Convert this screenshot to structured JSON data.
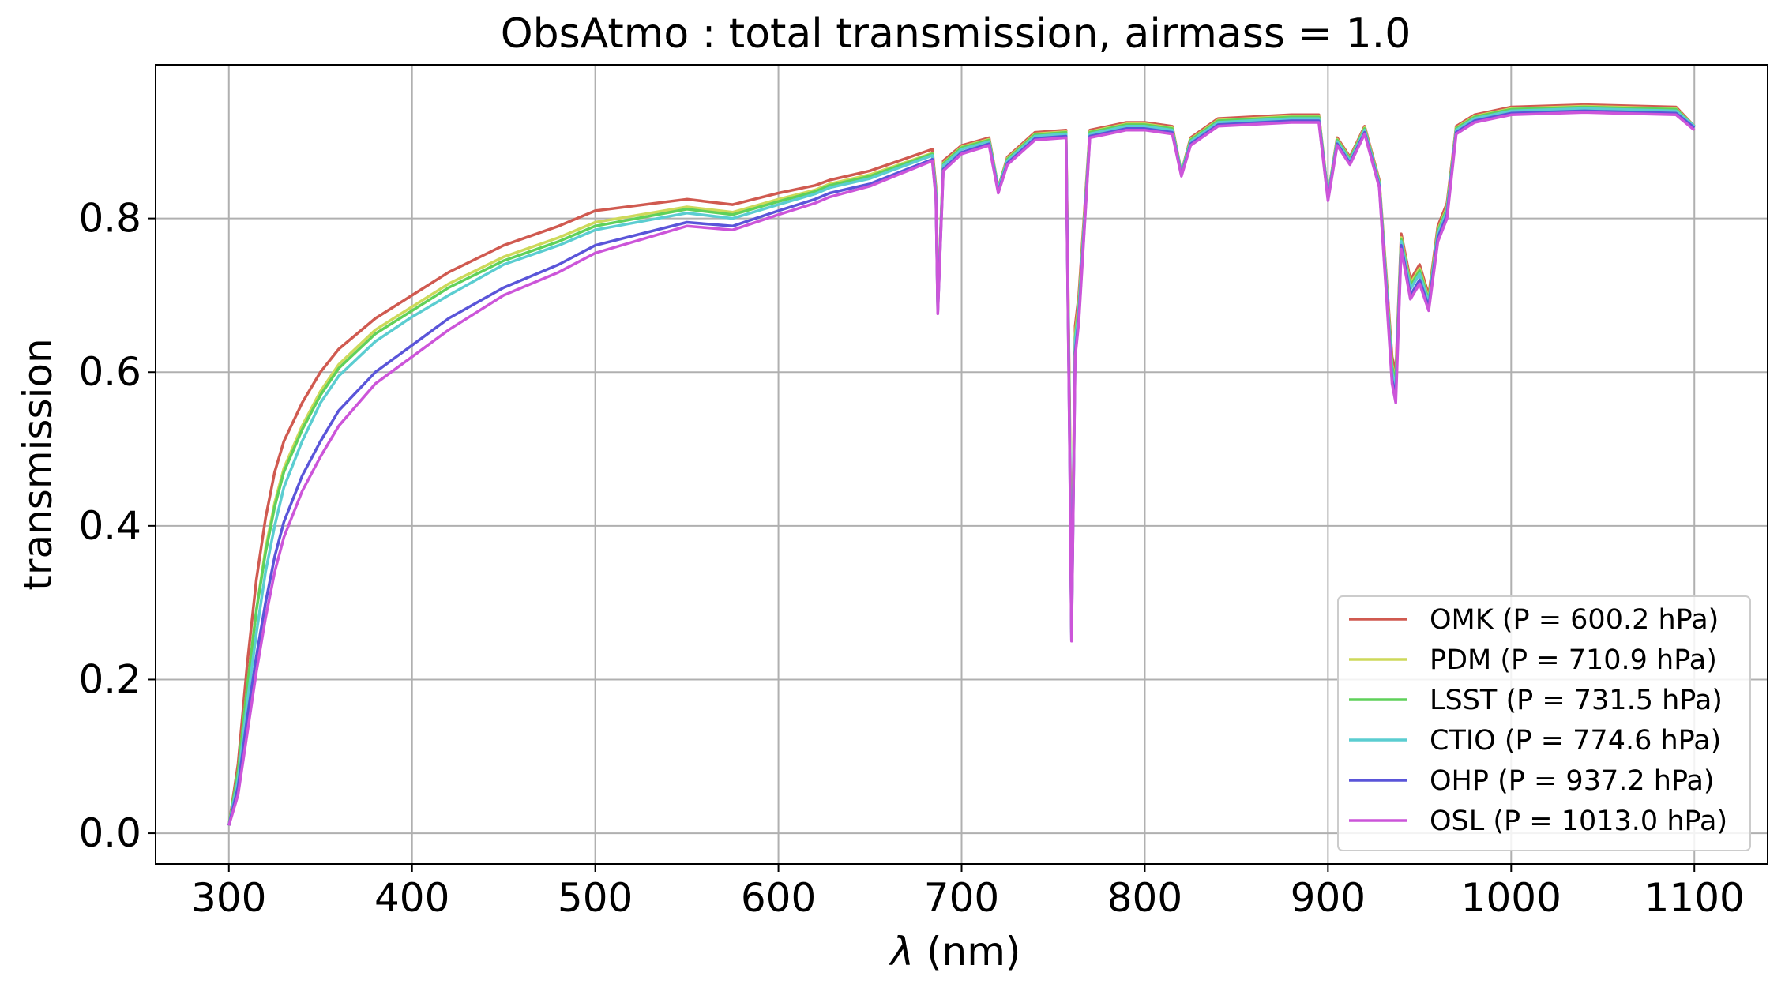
{
  "chart_data": {
    "type": "line",
    "title": "ObsAtmo  : total transmission, airmass = 1.0",
    "xlabel_symbol": "λ",
    "xlabel_unit": " (nm)",
    "ylabel": "transmission",
    "xlim": [
      260,
      1140
    ],
    "ylim": [
      -0.04,
      1.0
    ],
    "xticks": [
      300,
      400,
      500,
      600,
      700,
      800,
      900,
      1000,
      1100
    ],
    "yticks": [
      0.0,
      0.2,
      0.4,
      0.6,
      0.8
    ],
    "ytick_labels": [
      "0.0",
      "0.2",
      "0.4",
      "0.6",
      "0.8"
    ],
    "grid": true,
    "legend_position": "lower-right",
    "x": [
      300,
      305,
      310,
      315,
      320,
      325,
      330,
      340,
      350,
      360,
      380,
      400,
      420,
      450,
      480,
      500,
      550,
      575,
      600,
      620,
      628,
      650,
      684,
      686,
      687,
      690,
      700,
      715,
      720,
      725,
      740,
      757,
      759,
      760,
      762,
      764,
      770,
      790,
      800,
      815,
      820,
      825,
      840,
      880,
      895,
      900,
      905,
      912,
      920,
      928,
      932,
      935,
      937,
      940,
      945,
      950,
      955,
      960,
      965,
      970,
      980,
      1000,
      1040,
      1090,
      1100
    ],
    "series": [
      {
        "name": "OMK (P = 600.2 hPa)",
        "color": "#d05a50",
        "values": [
          0.01,
          0.09,
          0.22,
          0.33,
          0.41,
          0.47,
          0.51,
          0.56,
          0.6,
          0.63,
          0.67,
          0.7,
          0.73,
          0.765,
          0.79,
          0.81,
          0.825,
          0.818,
          0.833,
          0.843,
          0.85,
          0.862,
          0.89,
          0.84,
          0.69,
          0.875,
          0.895,
          0.905,
          0.84,
          0.88,
          0.912,
          0.915,
          0.55,
          0.28,
          0.66,
          0.7,
          0.915,
          0.925,
          0.925,
          0.92,
          0.86,
          0.905,
          0.93,
          0.935,
          0.935,
          0.83,
          0.905,
          0.88,
          0.92,
          0.85,
          0.72,
          0.62,
          0.6,
          0.78,
          0.72,
          0.74,
          0.7,
          0.79,
          0.82,
          0.92,
          0.935,
          0.945,
          0.948,
          0.945,
          0.92
        ]
      },
      {
        "name": "PDM (P = 710.9 hPa)",
        "color": "#cdd95a",
        "values": [
          0.01,
          0.08,
          0.19,
          0.29,
          0.37,
          0.43,
          0.475,
          0.53,
          0.575,
          0.61,
          0.655,
          0.685,
          0.715,
          0.75,
          0.775,
          0.795,
          0.815,
          0.808,
          0.825,
          0.837,
          0.845,
          0.857,
          0.885,
          0.835,
          0.685,
          0.872,
          0.893,
          0.903,
          0.84,
          0.878,
          0.91,
          0.913,
          0.53,
          0.265,
          0.65,
          0.69,
          0.913,
          0.923,
          0.923,
          0.918,
          0.86,
          0.903,
          0.928,
          0.933,
          0.933,
          0.83,
          0.903,
          0.878,
          0.918,
          0.848,
          0.715,
          0.61,
          0.59,
          0.775,
          0.715,
          0.735,
          0.695,
          0.785,
          0.815,
          0.918,
          0.933,
          0.943,
          0.946,
          0.943,
          0.92
        ]
      },
      {
        "name": "LSST (P = 731.5 hPa)",
        "color": "#5fd15a",
        "values": [
          0.01,
          0.08,
          0.19,
          0.29,
          0.365,
          0.425,
          0.47,
          0.525,
          0.57,
          0.605,
          0.65,
          0.68,
          0.71,
          0.745,
          0.77,
          0.79,
          0.812,
          0.805,
          0.822,
          0.835,
          0.843,
          0.855,
          0.884,
          0.834,
          0.684,
          0.871,
          0.892,
          0.902,
          0.84,
          0.877,
          0.909,
          0.912,
          0.525,
          0.262,
          0.645,
          0.685,
          0.912,
          0.922,
          0.922,
          0.917,
          0.86,
          0.902,
          0.927,
          0.932,
          0.932,
          0.83,
          0.902,
          0.877,
          0.917,
          0.847,
          0.712,
          0.607,
          0.587,
          0.773,
          0.712,
          0.732,
          0.693,
          0.783,
          0.813,
          0.917,
          0.932,
          0.942,
          0.945,
          0.942,
          0.92
        ]
      },
      {
        "name": "CTIO (P = 774.6 hPa)",
        "color": "#5bcdd1",
        "values": [
          0.01,
          0.07,
          0.17,
          0.26,
          0.34,
          0.4,
          0.45,
          0.51,
          0.56,
          0.595,
          0.64,
          0.672,
          0.7,
          0.74,
          0.765,
          0.785,
          0.807,
          0.8,
          0.818,
          0.832,
          0.84,
          0.852,
          0.882,
          0.832,
          0.682,
          0.869,
          0.89,
          0.9,
          0.838,
          0.875,
          0.907,
          0.91,
          0.515,
          0.258,
          0.64,
          0.68,
          0.91,
          0.92,
          0.92,
          0.915,
          0.858,
          0.9,
          0.925,
          0.93,
          0.93,
          0.828,
          0.9,
          0.875,
          0.915,
          0.845,
          0.708,
          0.6,
          0.58,
          0.77,
          0.708,
          0.728,
          0.69,
          0.78,
          0.81,
          0.915,
          0.93,
          0.94,
          0.943,
          0.94,
          0.92
        ]
      },
      {
        "name": "OHP (P = 937.2 hPa)",
        "color": "#5a55d9",
        "values": [
          0.01,
          0.06,
          0.15,
          0.23,
          0.3,
          0.36,
          0.405,
          0.465,
          0.51,
          0.55,
          0.6,
          0.635,
          0.67,
          0.71,
          0.74,
          0.765,
          0.795,
          0.79,
          0.81,
          0.825,
          0.833,
          0.845,
          0.877,
          0.827,
          0.678,
          0.864,
          0.886,
          0.897,
          0.835,
          0.872,
          0.904,
          0.907,
          0.5,
          0.252,
          0.625,
          0.67,
          0.907,
          0.917,
          0.917,
          0.912,
          0.856,
          0.897,
          0.922,
          0.927,
          0.927,
          0.825,
          0.897,
          0.872,
          0.912,
          0.842,
          0.7,
          0.59,
          0.57,
          0.765,
          0.7,
          0.72,
          0.685,
          0.775,
          0.805,
          0.912,
          0.927,
          0.937,
          0.94,
          0.937,
          0.918
        ]
      },
      {
        "name": "OSL (P = 1013.0 hPa)",
        "color": "#cc55d9",
        "values": [
          0.01,
          0.05,
          0.13,
          0.21,
          0.28,
          0.34,
          0.385,
          0.445,
          0.49,
          0.53,
          0.585,
          0.62,
          0.655,
          0.7,
          0.73,
          0.755,
          0.79,
          0.785,
          0.805,
          0.82,
          0.828,
          0.842,
          0.875,
          0.825,
          0.676,
          0.862,
          0.884,
          0.895,
          0.833,
          0.87,
          0.902,
          0.905,
          0.495,
          0.25,
          0.62,
          0.665,
          0.905,
          0.915,
          0.915,
          0.91,
          0.855,
          0.895,
          0.92,
          0.925,
          0.925,
          0.823,
          0.895,
          0.87,
          0.91,
          0.84,
          0.695,
          0.585,
          0.56,
          0.76,
          0.695,
          0.715,
          0.68,
          0.77,
          0.8,
          0.91,
          0.925,
          0.935,
          0.938,
          0.935,
          0.915
        ]
      }
    ]
  }
}
